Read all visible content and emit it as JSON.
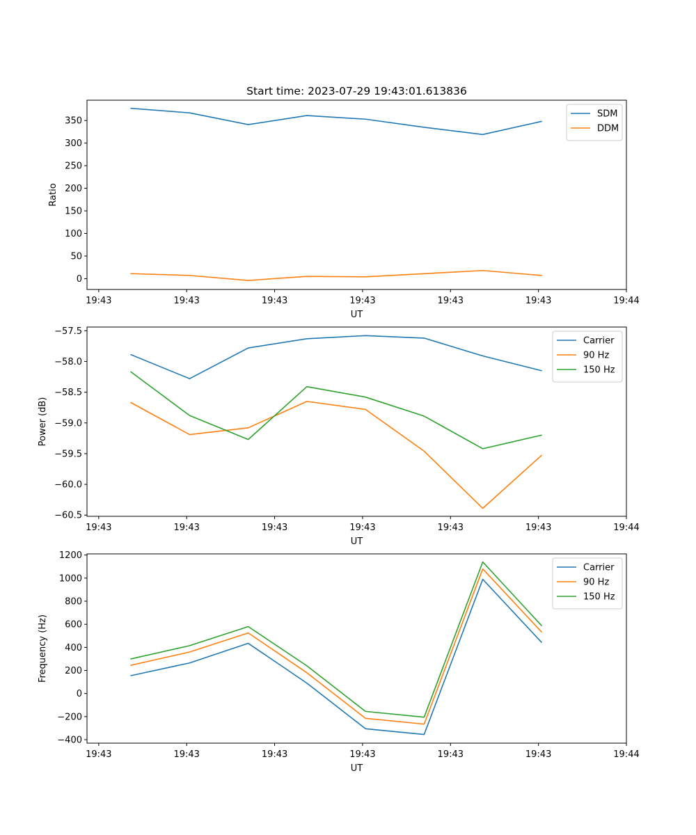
{
  "figure_title": "Start time: 2023-07-29 19:43:01.613836",
  "colors": {
    "blue": "#1f77b4",
    "orange": "#ff7f0e",
    "green": "#2ca02c"
  },
  "chart_data": [
    {
      "type": "line",
      "title": "Start time: 2023-07-29 19:43:01.613836",
      "xlabel": "UT",
      "ylabel": "Ratio",
      "x": [
        1,
        2,
        3,
        4,
        5,
        6,
        7,
        8
      ],
      "xlim": [
        0.25,
        9.45
      ],
      "xticks": [
        0.45,
        1.95,
        3.45,
        4.95,
        6.45,
        7.95,
        9.45
      ],
      "xtick_labels": [
        "19:43",
        "19:43",
        "19:43",
        "19:43",
        "19:43",
        "19:43",
        "19:44"
      ],
      "ylim": [
        -24,
        395
      ],
      "yticks": [
        0,
        50,
        100,
        150,
        200,
        250,
        300,
        350
      ],
      "ytick_labels": [
        "0",
        "50",
        "100",
        "150",
        "200",
        "250",
        "300",
        "350"
      ],
      "legend_position": "top-right",
      "series": [
        {
          "name": "SDM",
          "color": "#1f77b4",
          "values": [
            377,
            367,
            341,
            361,
            353,
            335,
            319,
            348
          ]
        },
        {
          "name": "DDM",
          "color": "#ff7f0e",
          "values": [
            11,
            7,
            -4,
            5,
            4,
            11,
            18,
            7
          ]
        }
      ]
    },
    {
      "type": "line",
      "title": "",
      "xlabel": "UT",
      "ylabel": "Power (dB)",
      "x": [
        1,
        2,
        3,
        4,
        5,
        6,
        7,
        8
      ],
      "xlim": [
        0.25,
        9.45
      ],
      "xticks": [
        0.45,
        1.95,
        3.45,
        4.95,
        6.45,
        7.95,
        9.45
      ],
      "xtick_labels": [
        "19:43",
        "19:43",
        "19:43",
        "19:43",
        "19:43",
        "19:43",
        "19:44"
      ],
      "ylim": [
        -60.52,
        -57.44
      ],
      "yticks": [
        -60.5,
        -60.0,
        -59.5,
        -59.0,
        -58.5,
        -58.0,
        -57.5
      ],
      "ytick_labels": [
        "−60.5",
        "−60.0",
        "−59.5",
        "−59.0",
        "−58.5",
        "−58.0",
        "−57.5"
      ],
      "legend_position": "top-right",
      "series": [
        {
          "name": "Carrier",
          "color": "#1f77b4",
          "values": [
            -57.89,
            -58.28,
            -57.78,
            -57.63,
            -57.58,
            -57.62,
            -57.91,
            -58.15
          ]
        },
        {
          "name": "90 Hz",
          "color": "#ff7f0e",
          "values": [
            -58.67,
            -59.19,
            -59.08,
            -58.65,
            -58.78,
            -59.46,
            -60.39,
            -59.53
          ]
        },
        {
          "name": "150 Hz",
          "color": "#2ca02c",
          "values": [
            -58.17,
            -58.88,
            -59.27,
            -58.41,
            -58.58,
            -58.89,
            -59.42,
            -59.2
          ]
        }
      ]
    },
    {
      "type": "line",
      "title": "",
      "xlabel": "UT",
      "ylabel": "Frequency (Hz)",
      "x": [
        1,
        2,
        3,
        4,
        5,
        6,
        7,
        8
      ],
      "xlim": [
        0.25,
        9.45
      ],
      "xticks": [
        0.45,
        1.95,
        3.45,
        4.95,
        6.45,
        7.95,
        9.45
      ],
      "xtick_labels": [
        "19:43",
        "19:43",
        "19:43",
        "19:43",
        "19:43",
        "19:43",
        "19:44"
      ],
      "ylim": [
        -430,
        1210
      ],
      "yticks": [
        -400,
        -200,
        0,
        200,
        400,
        600,
        800,
        1000,
        1200
      ],
      "ytick_labels": [
        "−400",
        "−200",
        "0",
        "200",
        "400",
        "600",
        "800",
        "1000",
        "1200"
      ],
      "legend_position": "top-right",
      "series": [
        {
          "name": "Carrier",
          "color": "#1f77b4",
          "values": [
            155,
            265,
            435,
            90,
            -305,
            -355,
            990,
            445
          ]
        },
        {
          "name": "90 Hz",
          "color": "#ff7f0e",
          "values": [
            245,
            360,
            525,
            180,
            -215,
            -265,
            1080,
            535
          ]
        },
        {
          "name": "150 Hz",
          "color": "#2ca02c",
          "values": [
            300,
            415,
            580,
            240,
            -155,
            -205,
            1140,
            590
          ]
        }
      ]
    }
  ]
}
